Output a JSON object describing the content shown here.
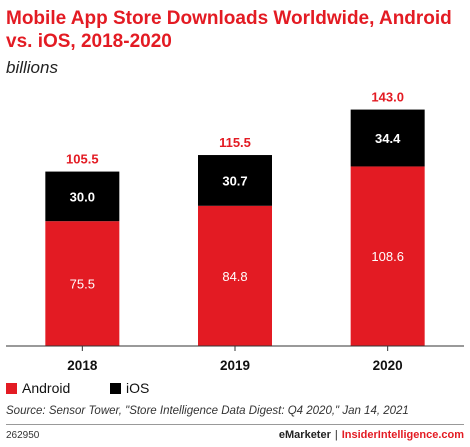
{
  "header": {
    "title": "Mobile App Store Downloads Worldwide, Android vs. iOS, 2018-2020",
    "subtitle": "billions"
  },
  "colors": {
    "android": "#e31b23",
    "ios": "#000000",
    "total_label": "#e31b23"
  },
  "chart_data": {
    "type": "bar",
    "stacked": true,
    "categories": [
      "2018",
      "2019",
      "2020"
    ],
    "series": [
      {
        "name": "Android",
        "values": [
          75.5,
          84.8,
          108.6
        ]
      },
      {
        "name": "iOS",
        "values": [
          30.0,
          30.7,
          34.4
        ]
      }
    ],
    "totals": [
      105.5,
      115.5,
      143.0
    ],
    "data_labels": {
      "android": [
        "75.5",
        "84.8",
        "108.6"
      ],
      "ios": [
        "30.0",
        "30.7",
        "34.4"
      ],
      "totals": [
        "105.5",
        "115.5",
        "143.0"
      ]
    },
    "title": "Mobile App Store Downloads Worldwide, Android vs. iOS, 2018-2020",
    "ylabel": "billions",
    "ylim": [
      0,
      150
    ],
    "grid": false,
    "legend": "bottom-left"
  },
  "legend": {
    "android": "Android",
    "ios": "iOS"
  },
  "footer": {
    "source": "Source: Sensor Tower, \"Store Intelligence Data Digest: Q4 2020,\" Jan 14, 2021",
    "chart_id": "262950",
    "brand_emarketer": "eMarketer",
    "brand_separator": "|",
    "brand_insider": "InsiderIntelligence.com"
  }
}
